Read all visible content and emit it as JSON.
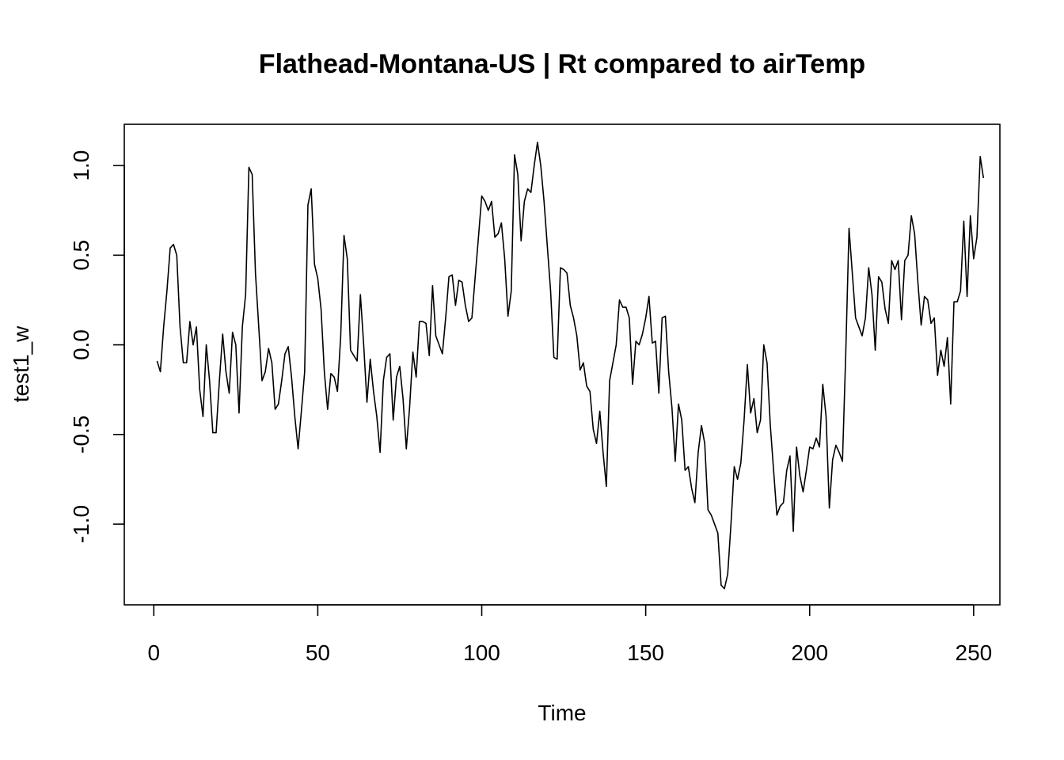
{
  "chart_data": {
    "type": "line",
    "title": "Flathead-Montana-US | Rt compared to airTemp",
    "xlabel": "Time",
    "ylabel": "test1_w",
    "xlim": [
      -9,
      258
    ],
    "ylim": [
      -1.45,
      1.23
    ],
    "x_ticks": [
      0,
      50,
      100,
      150,
      200,
      250
    ],
    "x_tick_labels": [
      "0",
      "50",
      "100",
      "150",
      "200",
      "250"
    ],
    "y_ticks": [
      -1.0,
      -0.5,
      0.0,
      0.5,
      1.0
    ],
    "y_tick_labels": [
      "-1.0",
      "-0.5",
      "0.0",
      "0.5",
      "1.0"
    ],
    "grid": false,
    "legend": "none",
    "line_color": "#000000",
    "series": [
      {
        "x_start": 1,
        "x_step": 1,
        "values": [
          -0.09,
          -0.15,
          0.1,
          0.3,
          0.54,
          0.56,
          0.5,
          0.1,
          -0.1,
          -0.1,
          0.13,
          0.0,
          0.1,
          -0.25,
          -0.4,
          0.0,
          -0.2,
          -0.49,
          -0.49,
          -0.2,
          0.06,
          -0.15,
          -0.27,
          0.07,
          0.0,
          -0.38,
          0.1,
          0.28,
          0.99,
          0.95,
          0.4,
          0.1,
          -0.2,
          -0.15,
          -0.02,
          -0.1,
          -0.36,
          -0.33,
          -0.2,
          -0.05,
          -0.01,
          -0.18,
          -0.4,
          -0.58,
          -0.37,
          -0.15,
          0.78,
          0.87,
          0.45,
          0.37,
          0.2,
          -0.15,
          -0.36,
          -0.16,
          -0.18,
          -0.26,
          0.05,
          0.61,
          0.48,
          -0.03,
          -0.06,
          -0.09,
          0.28,
          0.0,
          -0.32,
          -0.08,
          -0.26,
          -0.4,
          -0.6,
          -0.2,
          -0.07,
          -0.05,
          -0.42,
          -0.18,
          -0.12,
          -0.3,
          -0.58,
          -0.35,
          -0.04,
          -0.18,
          0.13,
          0.13,
          0.12,
          -0.06,
          0.33,
          0.05,
          0.0,
          -0.05,
          0.15,
          0.38,
          0.39,
          0.22,
          0.36,
          0.35,
          0.22,
          0.13,
          0.15,
          0.38,
          0.6,
          0.83,
          0.8,
          0.75,
          0.8,
          0.6,
          0.62,
          0.68,
          0.48,
          0.16,
          0.3,
          1.06,
          0.95,
          0.58,
          0.8,
          0.87,
          0.85,
          1.0,
          1.13,
          1.0,
          0.8,
          0.55,
          0.3,
          -0.07,
          -0.08,
          0.43,
          0.42,
          0.4,
          0.22,
          0.15,
          0.05,
          -0.14,
          -0.1,
          -0.23,
          -0.26,
          -0.47,
          -0.55,
          -0.37,
          -0.6,
          -0.79,
          -0.2,
          -0.1,
          0.0,
          0.25,
          0.21,
          0.21,
          0.15,
          -0.22,
          0.02,
          0.0,
          0.06,
          0.15,
          0.27,
          0.01,
          0.02,
          -0.27,
          0.15,
          0.16,
          -0.15,
          -0.35,
          -0.65,
          -0.33,
          -0.42,
          -0.7,
          -0.68,
          -0.8,
          -0.88,
          -0.6,
          -0.45,
          -0.55,
          -0.92,
          -0.95,
          -1.0,
          -1.05,
          -1.34,
          -1.36,
          -1.28,
          -1.0,
          -0.68,
          -0.75,
          -0.66,
          -0.42,
          -0.11,
          -0.38,
          -0.3,
          -0.49,
          -0.42,
          0.0,
          -0.1,
          -0.45,
          -0.7,
          -0.95,
          -0.9,
          -0.88,
          -0.7,
          -0.62,
          -1.04,
          -0.57,
          -0.73,
          -0.82,
          -0.7,
          -0.57,
          -0.58,
          -0.52,
          -0.57,
          -0.22,
          -0.4,
          -0.91,
          -0.64,
          -0.56,
          -0.6,
          -0.65,
          -0.05,
          0.65,
          0.4,
          0.15,
          0.1,
          0.05,
          0.15,
          0.43,
          0.28,
          -0.03,
          0.38,
          0.35,
          0.2,
          0.12,
          0.47,
          0.42,
          0.47,
          0.14,
          0.47,
          0.5,
          0.72,
          0.62,
          0.35,
          0.11,
          0.27,
          0.25,
          0.12,
          0.15,
          -0.17,
          -0.03,
          -0.12,
          0.04,
          -0.33,
          0.24,
          0.24,
          0.3,
          0.69,
          0.27,
          0.72,
          0.48,
          0.6,
          1.05,
          0.93
        ]
      }
    ]
  }
}
